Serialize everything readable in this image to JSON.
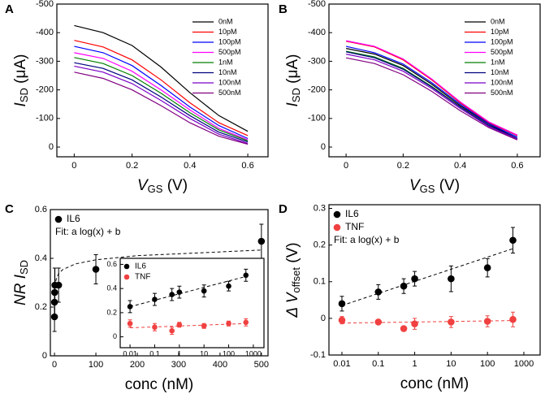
{
  "chart_data": [
    {
      "type": "line",
      "panel": "A",
      "xlabel": [
        "V",
        "GS",
        " (V)"
      ],
      "ylabel": [
        "I",
        "SD",
        " (μA)"
      ],
      "xlim": [
        -0.06,
        0.67
      ],
      "ylim": [
        34,
        -500
      ],
      "xticks": [
        0.0,
        0.2,
        0.4,
        0.6
      ],
      "yticks": [
        -500,
        -400,
        -300,
        -200,
        -100,
        0
      ],
      "legend": "upper right",
      "x": [
        0,
        0.1,
        0.2,
        0.3,
        0.4,
        0.5,
        0.6
      ],
      "series": [
        {
          "name": "0nM",
          "color": "#000000",
          "values": [
            -425,
            -400,
            -355,
            -280,
            -190,
            -110,
            -55
          ]
        },
        {
          "name": "10pM",
          "color": "#ff0000",
          "values": [
            -373,
            -350,
            -305,
            -235,
            -155,
            -85,
            -40
          ]
        },
        {
          "name": "100pM",
          "color": "#0000ff",
          "values": [
            -352,
            -330,
            -285,
            -215,
            -140,
            -75,
            -30
          ]
        },
        {
          "name": "500pM",
          "color": "#ff00ff",
          "values": [
            -330,
            -310,
            -265,
            -200,
            -130,
            -65,
            -25
          ]
        },
        {
          "name": "1nM",
          "color": "#008000",
          "values": [
            -313,
            -292,
            -250,
            -188,
            -120,
            -60,
            -22
          ]
        },
        {
          "name": "10nM",
          "color": "#000080",
          "values": [
            -295,
            -275,
            -235,
            -175,
            -110,
            -52,
            -18
          ]
        },
        {
          "name": "100nM",
          "color": "#7b00c8",
          "values": [
            -283,
            -262,
            -222,
            -163,
            -100,
            -45,
            -13
          ]
        },
        {
          "name": "500nM",
          "color": "#800080",
          "values": [
            -262,
            -240,
            -200,
            -145,
            -85,
            -38,
            -10
          ]
        }
      ]
    },
    {
      "type": "line",
      "panel": "B",
      "xlabel": [
        "V",
        "GS",
        " (V)"
      ],
      "ylabel": [
        "I",
        "SD",
        " (μA)"
      ],
      "xlim": [
        -0.06,
        0.68
      ],
      "ylim": [
        34,
        -500
      ],
      "xticks": [
        0.0,
        0.2,
        0.4,
        0.6
      ],
      "yticks": [
        -500,
        -400,
        -300,
        -200,
        -100,
        0
      ],
      "legend": "upper right",
      "x": [
        0,
        0.1,
        0.2,
        0.3,
        0.4,
        0.5,
        0.6
      ],
      "series": [
        {
          "name": "0nM",
          "color": "#000000",
          "values": [
            -345,
            -325,
            -285,
            -220,
            -145,
            -80,
            -30
          ]
        },
        {
          "name": "10pM",
          "color": "#ff0000",
          "values": [
            -370,
            -350,
            -305,
            -235,
            -155,
            -85,
            -40
          ]
        },
        {
          "name": "100pM",
          "color": "#0000ff",
          "values": [
            -352,
            -330,
            -290,
            -225,
            -150,
            -82,
            -35
          ]
        },
        {
          "name": "500pM",
          "color": "#ff00ff",
          "values": [
            -372,
            -352,
            -308,
            -238,
            -158,
            -88,
            -42
          ]
        },
        {
          "name": "1nM",
          "color": "#008000",
          "values": [
            -335,
            -315,
            -275,
            -212,
            -140,
            -75,
            -28
          ]
        },
        {
          "name": "10nM",
          "color": "#000080",
          "values": [
            -333,
            -312,
            -272,
            -210,
            -140,
            -75,
            -30
          ]
        },
        {
          "name": "100nM",
          "color": "#7b00c8",
          "values": [
            -325,
            -305,
            -265,
            -205,
            -135,
            -72,
            -28
          ]
        },
        {
          "name": "500nM",
          "color": "#800080",
          "values": [
            -312,
            -292,
            -253,
            -195,
            -127,
            -68,
            -25
          ]
        }
      ]
    },
    {
      "type": "scatter",
      "panel": "C",
      "xlabel": [
        "conc (nM)"
      ],
      "ylabel": [
        "NR I",
        "SD"
      ],
      "xlim": [
        -10,
        516
      ],
      "ylim": [
        0,
        0.6
      ],
      "xticks": [
        0,
        100,
        200,
        300,
        400,
        500
      ],
      "yticks": [
        0,
        0.2,
        0.4,
        0.6
      ],
      "legend": "upper left",
      "x": [
        0.01,
        0.1,
        0.5,
        1,
        10,
        100,
        500
      ],
      "series": [
        {
          "name": "IL6",
          "color": "#000000",
          "values": [
            0.16,
            0.22,
            0.26,
            0.29,
            0.29,
            0.355,
            0.47
          ],
          "errors": [
            0.06,
            0.06,
            0.1,
            0.07,
            0.07,
            0.06,
            0.07
          ]
        },
        {
          "name": "Fit: a log(x) + b",
          "color": "#000000",
          "dash": true,
          "x": [
            0.01,
            0.1,
            1,
            2,
            5,
            10,
            20,
            50,
            100,
            200,
            500
          ],
          "values": [
            0.166,
            0.223,
            0.28,
            0.297,
            0.32,
            0.337,
            0.354,
            0.377,
            0.394,
            0.411,
            0.434
          ]
        }
      ]
    },
    {
      "type": "scatter",
      "panel": "D",
      "xlabel": [
        "conc (nM)"
      ],
      "ylabel": [
        "Δ V",
        "offset",
        " (V)"
      ],
      "xscale": "log",
      "xlim": [
        0.0044,
        2800
      ],
      "ylim": [
        -0.1,
        0.31
      ],
      "xticks": [
        0.01,
        0.1,
        1,
        10,
        100,
        1000
      ],
      "yticks": [
        -0.1,
        0,
        0.1,
        0.2,
        0.3
      ],
      "legend": "upper left",
      "x": [
        0.01,
        0.1,
        0.5,
        1,
        10,
        100,
        500
      ],
      "series": [
        {
          "name": "IL6",
          "color": "#000000",
          "values": [
            0.04,
            0.072,
            0.088,
            0.108,
            0.108,
            0.138,
            0.213
          ],
          "errors": [
            0.02,
            0.02,
            0.02,
            0.02,
            0.035,
            0.025,
            0.035
          ]
        },
        {
          "name": "TNF",
          "color": "#f04040",
          "values": [
            -0.005,
            -0.01,
            -0.028,
            -0.015,
            -0.01,
            -0.008,
            -0.003
          ],
          "errors": [
            0.01,
            0.005,
            0.005,
            0.015,
            0.015,
            0.015,
            0.02
          ]
        },
        {
          "name": "Fit: a log(x) + b",
          "color": "#000000",
          "dash": true,
          "x": [
            0.01,
            500
          ],
          "values": [
            0.035,
            0.19
          ]
        },
        {
          "color": "#f04040",
          "dash": true,
          "x": [
            0.01,
            500
          ],
          "values": [
            -0.013,
            -0.006
          ]
        }
      ]
    },
    {
      "type": "scatter",
      "inset": true,
      "xscale": "log",
      "xlim": [
        0.004,
        2700
      ],
      "ylim": [
        -0.09,
        0.65
      ],
      "xticks": [
        0.01,
        0.1,
        1,
        10,
        100,
        1000
      ],
      "yticks": [
        0,
        0.2,
        0.4,
        0.6
      ],
      "legend": "upper left",
      "x": [
        0.01,
        0.1,
        0.5,
        1,
        10,
        100,
        500
      ],
      "series": [
        {
          "name": "IL6",
          "color": "#000000",
          "values": [
            0.25,
            0.31,
            0.35,
            0.37,
            0.38,
            0.42,
            0.51
          ],
          "errors": [
            0.05,
            0.05,
            0.05,
            0.05,
            0.05,
            0.04,
            0.05
          ]
        },
        {
          "name": "TNF",
          "color": "#f04040",
          "values": [
            0.11,
            0.08,
            0.05,
            0.1,
            0.09,
            0.11,
            0.12
          ],
          "errors": [
            0.03,
            0.03,
            0.03,
            0.02,
            0.02,
            0.02,
            0.03
          ]
        },
        {
          "color": "#000000",
          "dash": true,
          "x": [
            0.01,
            500
          ],
          "values": [
            0.25,
            0.5
          ]
        },
        {
          "color": "#f04040",
          "dash": true,
          "x": [
            0.01,
            500
          ],
          "values": [
            0.075,
            0.11
          ]
        }
      ]
    }
  ]
}
